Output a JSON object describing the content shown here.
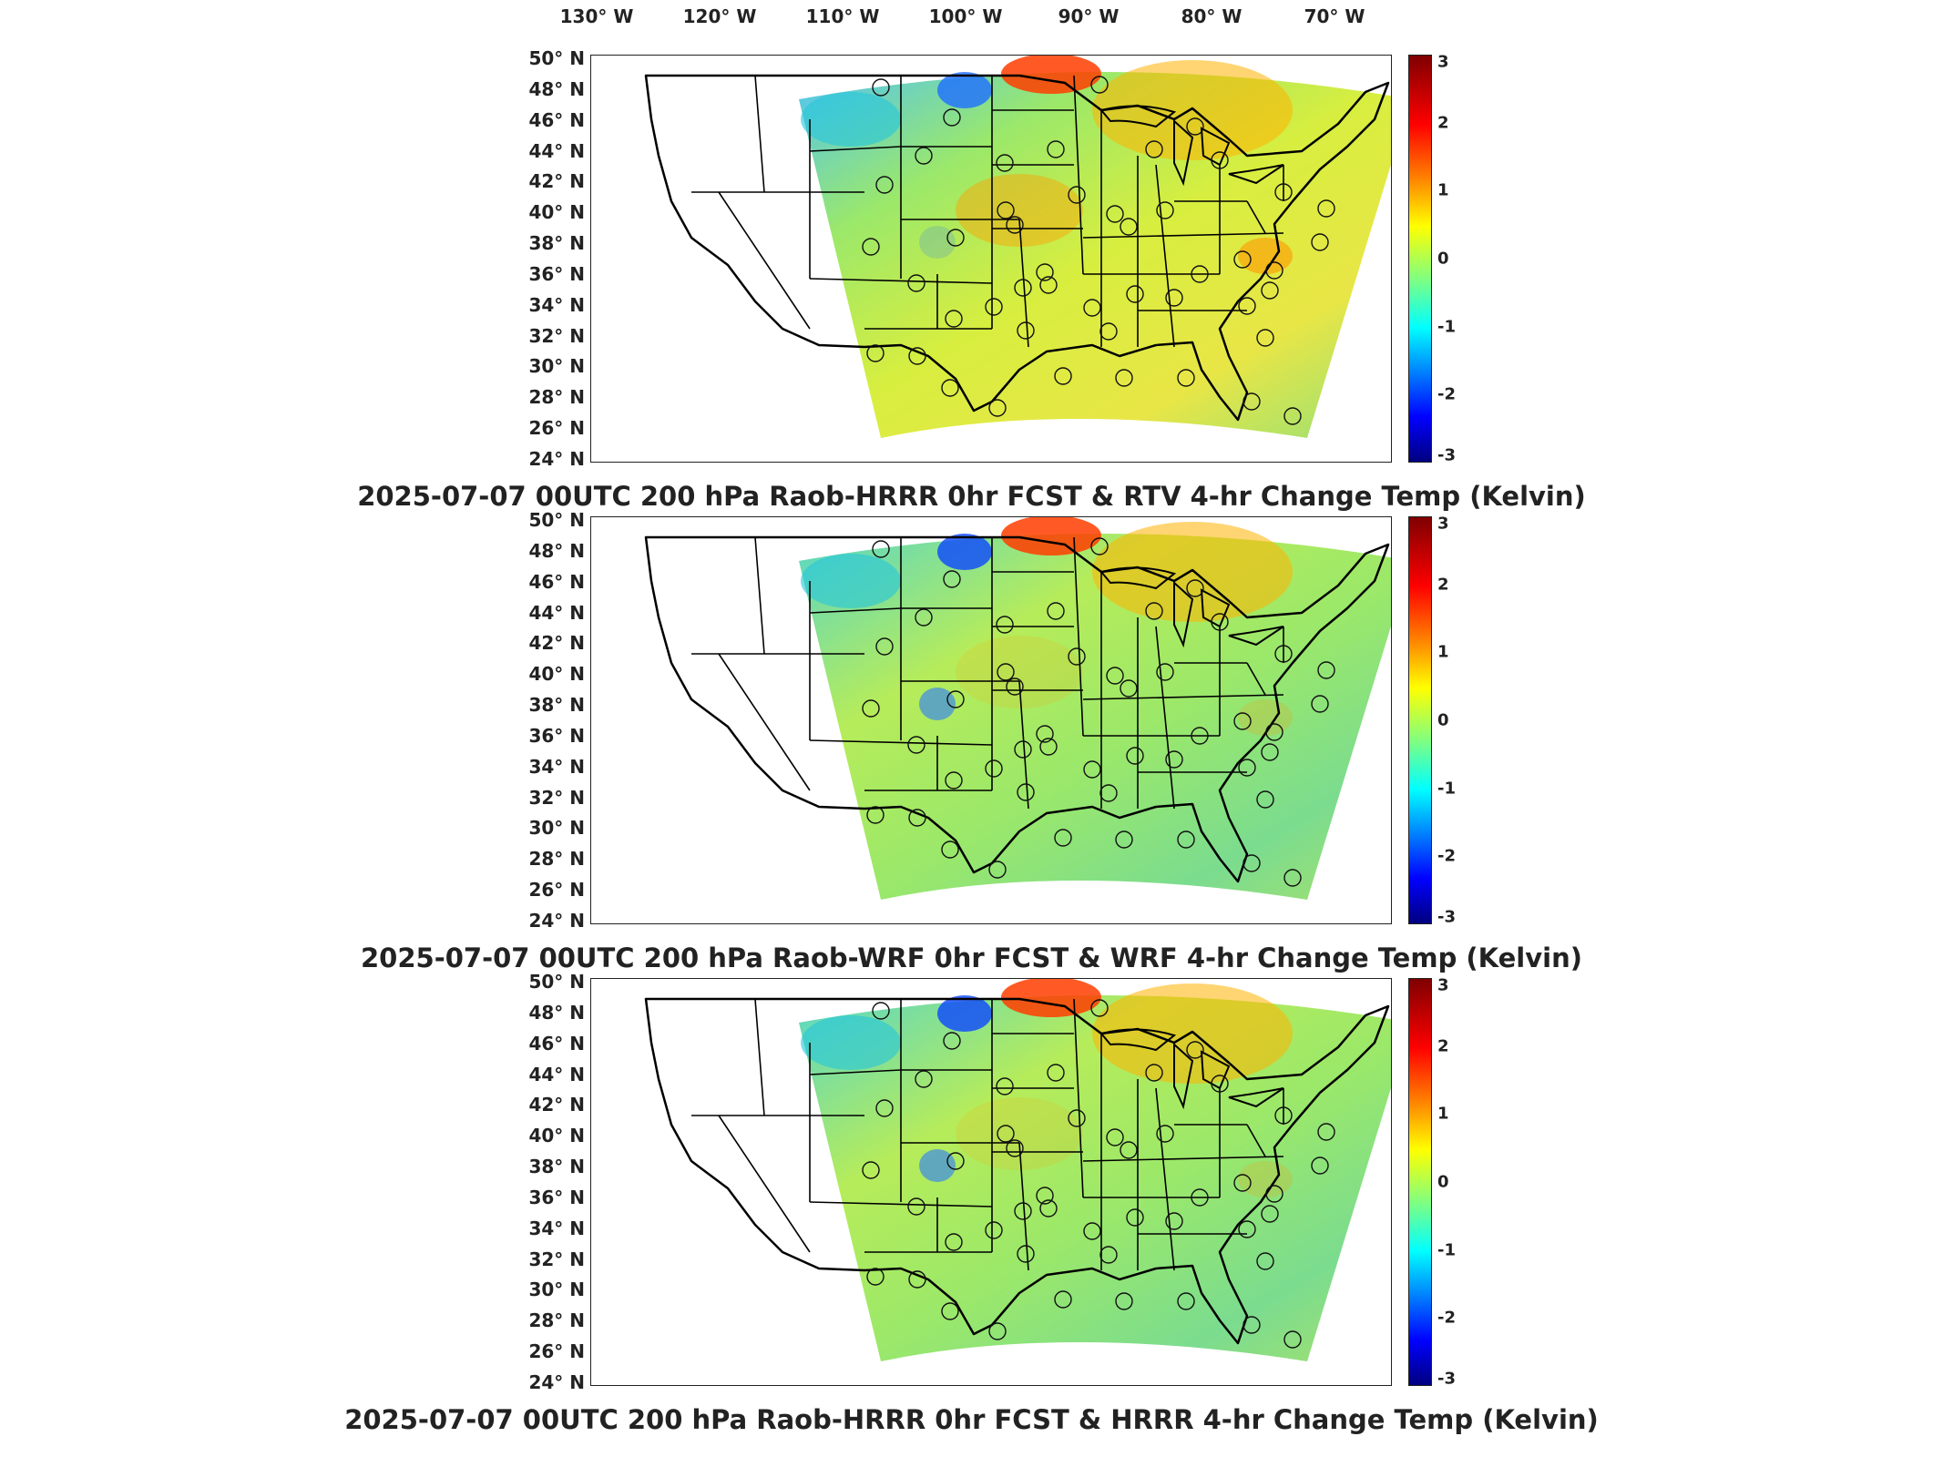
{
  "longitude_labels": [
    "130° W",
    "120° W",
    "110° W",
    "100° W",
    "90° W",
    "80° W",
    "70° W"
  ],
  "latitude_labels": [
    "50° N",
    "48° N",
    "46° N",
    "44° N",
    "42° N",
    "40° N",
    "38° N",
    "36° N",
    "34° N",
    "32° N",
    "30° N",
    "28° N",
    "26° N",
    "24° N"
  ],
  "colorbar": {
    "ticks": [
      "3",
      "2",
      "1",
      "0",
      "-1",
      "-2",
      "-3"
    ],
    "range": [
      -3,
      3
    ],
    "colors": [
      "#7f0000",
      "#ff0000",
      "#ff8000",
      "#ffff00",
      "#80ff80",
      "#00ffff",
      "#0080ff",
      "#0000ff",
      "#00007f"
    ]
  },
  "panels": [
    {
      "title": "2025-07-07 00UTC 200 hPa Raob-HRRR 0hr FCST & RTV 4-hr Change Temp (Kelvin)"
    },
    {
      "title": "2025-07-07 00UTC 200 hPa Raob-WRF 0hr FCST & WRF 4-hr Change Temp (Kelvin)"
    },
    {
      "title": "2025-07-07 00UTC 200 hPa Raob-HRRR 0hr FCST & HRRR 4-hr Change Temp (Kelvin)"
    }
  ]
}
